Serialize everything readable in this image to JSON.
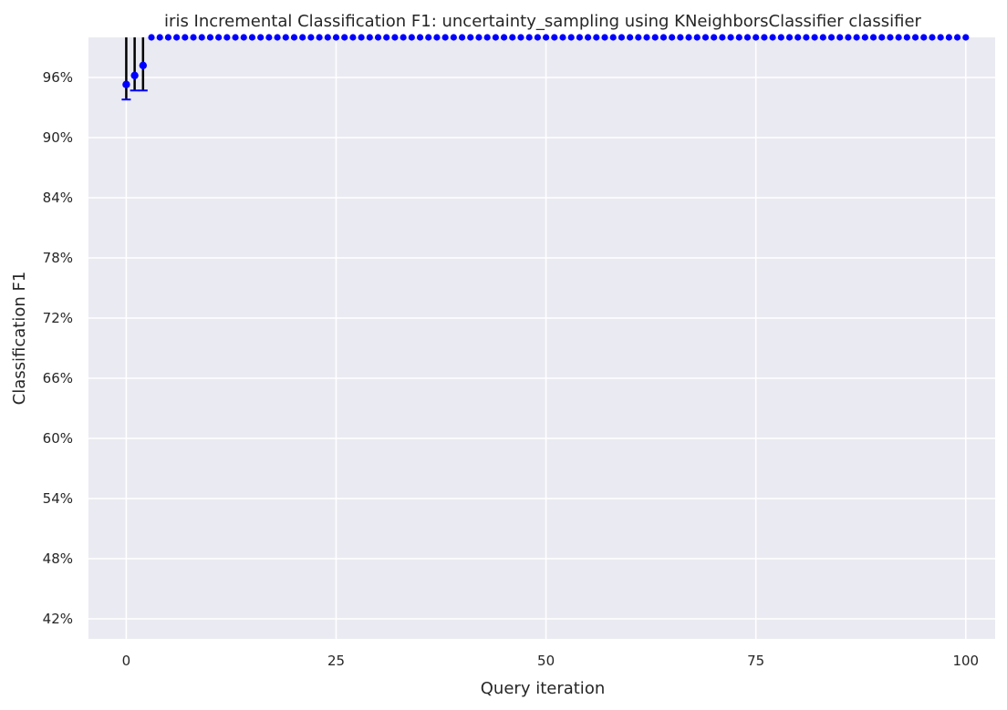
{
  "chart_data": {
    "type": "scatter",
    "title": "iris Incremental Classification F1: uncertainty_sampling using KNeighborsClassifier classifier",
    "xlabel": "Query iteration",
    "ylabel": "Classification F1",
    "xlim": [
      -4.5,
      103.5
    ],
    "ylim": [
      0.4,
      1.0
    ],
    "x_ticks": [
      0,
      25,
      50,
      75,
      100
    ],
    "y_ticks": [
      {
        "value": 0.42,
        "label": "42%"
      },
      {
        "value": 0.48,
        "label": "48%"
      },
      {
        "value": 0.54,
        "label": "54%"
      },
      {
        "value": 0.6,
        "label": "60%"
      },
      {
        "value": 0.66,
        "label": "66%"
      },
      {
        "value": 0.72,
        "label": "72%"
      },
      {
        "value": 0.78,
        "label": "78%"
      },
      {
        "value": 0.84,
        "label": "84%"
      },
      {
        "value": 0.9,
        "label": "90%"
      },
      {
        "value": 0.96,
        "label": "96%"
      }
    ],
    "grid": true,
    "series": [
      {
        "marker_color": "#0000ff",
        "error_color": "#000000",
        "cap_color": "#0000ff",
        "points": [
          {
            "x": 0,
            "y": 0.953,
            "err_low": 0.938,
            "err_high": 1.0
          },
          {
            "x": 1,
            "y": 0.962,
            "err_low": 0.947,
            "err_high": 1.0
          },
          {
            "x": 2,
            "y": 0.972,
            "err_low": 0.947,
            "err_high": 1.0
          }
        ],
        "constant_run": {
          "x_start": 3,
          "x_end": 100,
          "y": 1.0
        }
      }
    ]
  }
}
